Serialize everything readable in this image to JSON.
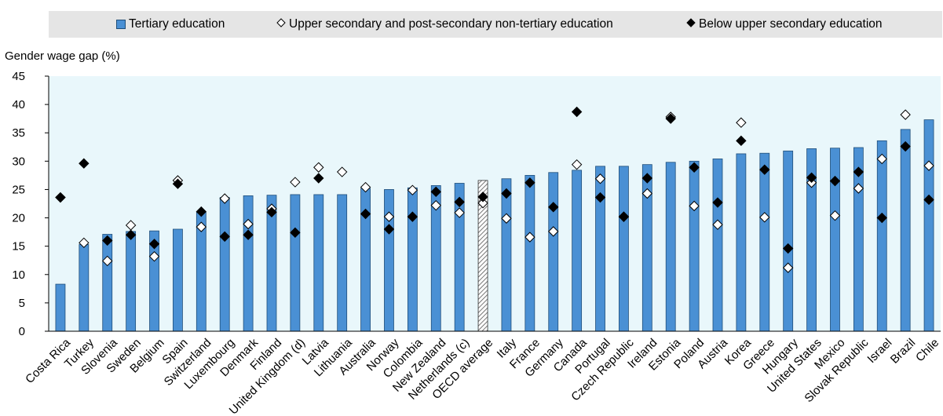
{
  "legend": {
    "tertiary": "Tertiary education",
    "upper_secondary": "Upper secondary and post-secondary non-tertiary education",
    "below_secondary": "Below upper secondary education"
  },
  "chart_data": {
    "type": "bar",
    "ylabel": "Gender wage gap (%)",
    "ylim": [
      0,
      45
    ],
    "yticks": [
      0,
      5,
      10,
      15,
      20,
      25,
      30,
      35,
      40,
      45
    ],
    "grid": false,
    "legend_placement": "top",
    "colors": {
      "bar": "#4a90d4",
      "bar_border": "#1f4e79",
      "highlight_bar": "hatched",
      "plot_background": "#e9f7fb"
    },
    "categories": [
      "Costa Rica",
      "Turkey",
      "Slovenia",
      "Sweden",
      "Belgium",
      "Spain",
      "Switzerland",
      "Luxembourg",
      "Denmark",
      "Finland",
      "United Kingdom (d)",
      "Latvia",
      "Lithuania",
      "Australia",
      "Norway",
      "Colombia",
      "New Zealand",
      "Netherlands (c)",
      "OECD average",
      "Italy",
      "France",
      "Germany",
      "Canada",
      "Portugal",
      "Czech Republic",
      "Ireland",
      "Estonia",
      "Poland",
      "Austria",
      "Korea",
      "Greece",
      "Hungary",
      "United States",
      "Mexico",
      "Slovak Republic",
      "Israel",
      "Brazil",
      "Chile"
    ],
    "highlight_category": "OECD average",
    "series": [
      {
        "name": "Tertiary education",
        "marker": "bar",
        "values": [
          8.3,
          15.3,
          17.1,
          17.6,
          17.7,
          18.0,
          21.0,
          23.6,
          23.9,
          24.0,
          24.1,
          24.1,
          24.1,
          25.2,
          25.0,
          25.3,
          25.7,
          26.1,
          26.6,
          26.9,
          27.5,
          28.0,
          28.4,
          29.1,
          29.1,
          29.4,
          29.8,
          30.0,
          30.4,
          31.3,
          31.4,
          31.8,
          32.2,
          32.3,
          32.4,
          33.6,
          35.6,
          37.3
        ]
      },
      {
        "name": "Upper secondary and post-secondary non-tertiary education",
        "marker": "open-diamond",
        "values": [
          23.6,
          15.6,
          12.4,
          18.7,
          13.2,
          26.6,
          18.4,
          23.4,
          18.9,
          21.6,
          26.3,
          28.9,
          28.1,
          25.4,
          20.2,
          24.9,
          22.2,
          20.9,
          22.6,
          19.9,
          16.6,
          17.6,
          29.4,
          26.9,
          20.2,
          24.3,
          37.8,
          22.1,
          18.8,
          36.8,
          20.1,
          11.2,
          26.2,
          20.4,
          25.2,
          30.4,
          38.2,
          29.2
        ]
      },
      {
        "name": "Below upper secondary education",
        "marker": "filled-diamond",
        "values": [
          23.6,
          29.6,
          16.0,
          17.0,
          15.4,
          26.0,
          21.1,
          16.7,
          17.0,
          21.0,
          17.4,
          27.0,
          null,
          20.7,
          18.0,
          20.2,
          24.6,
          22.8,
          23.7,
          24.3,
          26.2,
          21.9,
          38.7,
          23.6,
          20.2,
          27.0,
          37.5,
          28.9,
          22.7,
          33.6,
          28.5,
          14.6,
          27.1,
          26.5,
          28.1,
          20.0,
          32.6,
          23.2
        ]
      }
    ]
  }
}
